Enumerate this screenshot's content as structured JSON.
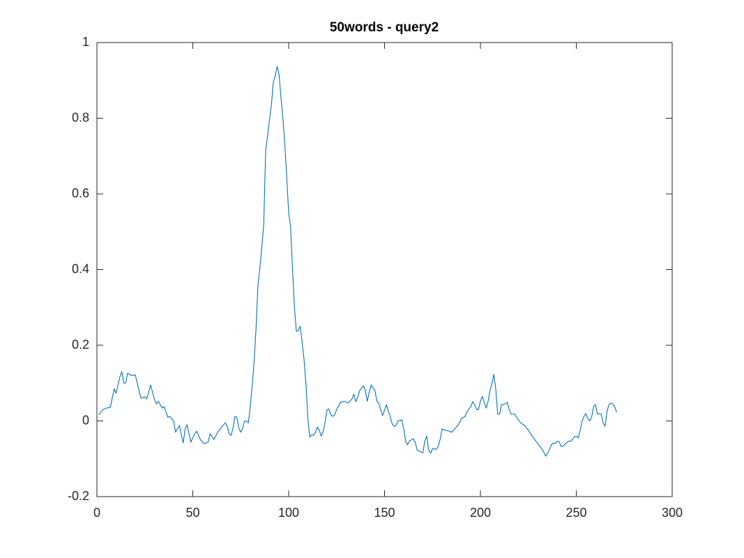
{
  "chart_data": {
    "type": "line",
    "title": "50words - query2",
    "x": [
      1,
      3,
      5,
      7,
      9,
      10,
      12,
      13,
      14,
      15,
      16,
      18,
      20,
      22,
      23,
      25,
      26,
      28,
      30,
      31,
      32,
      34,
      35,
      37,
      38,
      40,
      41,
      43,
      45,
      46,
      47,
      49,
      51,
      52,
      54,
      56,
      58,
      59,
      61,
      63,
      65,
      67,
      68,
      69,
      70,
      71,
      72,
      73,
      74,
      75,
      76,
      77,
      78,
      79,
      80,
      81,
      82,
      83,
      84,
      85,
      86,
      87,
      88,
      89,
      90,
      91,
      92,
      93,
      94,
      95,
      96,
      97,
      98,
      99,
      100,
      101,
      102,
      103,
      104,
      105,
      106,
      107,
      108,
      109,
      110,
      111,
      112,
      113,
      114,
      115,
      116,
      117,
      118,
      119,
      120,
      121,
      122,
      123,
      124,
      125,
      127,
      129,
      131,
      133,
      134,
      135,
      136,
      137,
      139,
      140,
      141,
      142,
      143,
      145,
      146,
      147,
      148,
      149,
      150,
      151,
      152,
      153,
      154,
      155,
      156,
      157,
      159,
      160,
      161,
      162,
      163,
      165,
      166,
      167,
      169,
      170,
      171,
      172,
      173,
      174,
      175,
      177,
      178,
      179,
      180,
      182,
      184,
      185,
      187,
      189,
      190,
      192,
      193,
      195,
      196,
      197,
      198,
      199,
      200,
      201,
      202,
      203,
      204,
      205,
      206,
      207,
      208,
      209,
      210,
      211,
      212,
      214,
      215,
      216,
      218,
      219,
      221,
      223,
      225,
      227,
      229,
      231,
      233,
      234,
      235,
      236,
      237,
      238,
      239,
      240,
      241,
      242,
      243,
      244,
      246,
      247,
      248,
      249,
      250,
      251,
      252,
      253,
      254,
      255,
      256,
      257,
      258,
      259,
      260,
      261,
      262,
      263,
      264,
      265,
      266,
      267,
      268,
      269,
      270,
      271
    ],
    "values": [
      0.016,
      0.03,
      0.034,
      0.036,
      0.085,
      0.073,
      0.117,
      0.13,
      0.1,
      0.1,
      0.126,
      0.12,
      0.122,
      0.08,
      0.06,
      0.064,
      0.058,
      0.095,
      0.057,
      0.045,
      0.052,
      0.034,
      0.038,
      0.01,
      0.012,
      0,
      -0.03,
      -0.012,
      -0.058,
      -0.021,
      -0.01,
      -0.056,
      -0.034,
      -0.027,
      -0.05,
      -0.06,
      -0.056,
      -0.034,
      -0.049,
      -0.03,
      -0.016,
      -0.005,
      -0.014,
      -0.034,
      -0.038,
      -0.018,
      0.012,
      0.01,
      -0.019,
      -0.03,
      -0.019,
      0,
      0,
      -0.005,
      0.04,
      0.095,
      0.158,
      0.246,
      0.36,
      0.405,
      0.46,
      0.52,
      0.715,
      0.753,
      0.796,
      0.836,
      0.895,
      0.913,
      0.937,
      0.915,
      0.854,
      0.8,
      0.729,
      0.644,
      0.55,
      0.513,
      0.403,
      0.301,
      0.237,
      0.239,
      0.25,
      0.209,
      0.163,
      0.099,
      0.006,
      -0.043,
      -0.036,
      -0.038,
      -0.03,
      -0.016,
      -0.025,
      -0.04,
      -0.027,
      -0.003,
      0.029,
      0.032,
      0.016,
      0.012,
      0.016,
      0.03,
      0.049,
      0.052,
      0.047,
      0.058,
      0.071,
      0.051,
      0.062,
      0.08,
      0.093,
      0.08,
      0.052,
      0.076,
      0.095,
      0.08,
      0.052,
      0.047,
      0.03,
      0.014,
      0.029,
      0.043,
      0.025,
      0.01,
      -0.008,
      -0.014,
      -0.012,
      0,
      0.003,
      -0.021,
      -0.054,
      -0.063,
      -0.053,
      -0.047,
      -0.056,
      -0.077,
      -0.082,
      -0.084,
      -0.053,
      -0.04,
      -0.077,
      -0.086,
      -0.073,
      -0.075,
      -0.067,
      -0.049,
      -0.021,
      -0.025,
      -0.027,
      -0.03,
      -0.019,
      -0.006,
      0.006,
      0.012,
      0.025,
      0.038,
      0.051,
      0.043,
      0.03,
      0.03,
      0.052,
      0.065,
      0.049,
      0.034,
      0.052,
      0.08,
      0.099,
      0.123,
      0.084,
      0.018,
      0.018,
      0.043,
      0.043,
      0.049,
      0.03,
      0.018,
      0.018,
      0.008,
      -0.005,
      -0.012,
      -0.025,
      -0.04,
      -0.054,
      -0.067,
      -0.082,
      -0.093,
      -0.086,
      -0.075,
      -0.063,
      -0.058,
      -0.06,
      -0.054,
      -0.054,
      -0.067,
      -0.067,
      -0.062,
      -0.053,
      -0.054,
      -0.049,
      -0.042,
      -0.04,
      -0.045,
      -0.025,
      -0.001,
      0.012,
      0.019,
      0.006,
      0,
      0.01,
      0.038,
      0.043,
      0.018,
      0.019,
      0.018,
      -0.005,
      -0.014,
      0.025,
      0.043,
      0.047,
      0.045,
      0.038,
      0.023
    ],
    "color": "#0072bd",
    "xlim": [
      0,
      300
    ],
    "ylim": [
      -0.2,
      1
    ],
    "xticks": [
      0,
      50,
      100,
      150,
      200,
      250,
      300
    ],
    "yticks": [
      -0.2,
      0,
      0.2,
      0.4,
      0.6,
      0.8,
      1
    ]
  }
}
